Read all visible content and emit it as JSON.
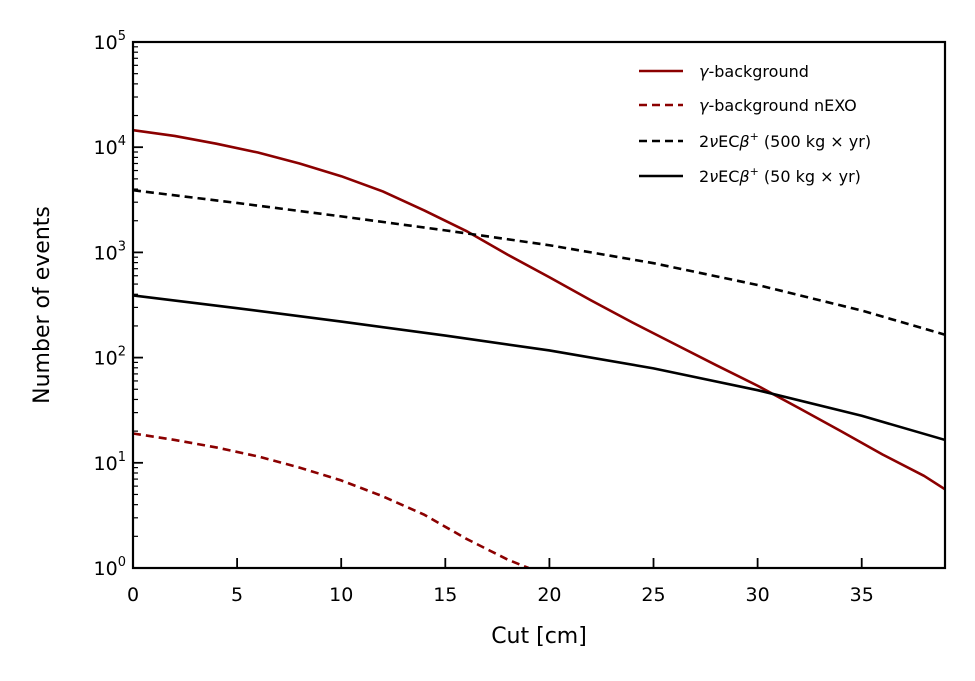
{
  "chart_data": {
    "type": "line",
    "title": "",
    "xlabel": "Cut [cm]",
    "ylabel": "Number of events",
    "xlim": [
      0,
      39
    ],
    "ylim": [
      1,
      100000
    ],
    "yscale": "log",
    "grid": false,
    "legend_position": "upper-right",
    "x_ticks": [
      0,
      5,
      10,
      15,
      20,
      25,
      30,
      35
    ],
    "y_ticks": [
      {
        "base": "10",
        "exp": "0",
        "value": 1
      },
      {
        "base": "10",
        "exp": "1",
        "value": 10
      },
      {
        "base": "10",
        "exp": "2",
        "value": 100
      },
      {
        "base": "10",
        "exp": "3",
        "value": 1000
      },
      {
        "base": "10",
        "exp": "4",
        "value": 10000
      },
      {
        "base": "10",
        "exp": "5",
        "value": 100000
      }
    ],
    "series": [
      {
        "name": "γ-background",
        "legend_parts": {
          "greek": "γ",
          "rest": "-background"
        },
        "color": "#8b0000",
        "dash": "solid",
        "x": [
          0,
          2,
          4,
          6,
          8,
          10,
          12,
          14,
          16,
          18,
          20,
          22,
          24,
          26,
          28,
          30,
          32,
          34,
          36,
          38,
          39
        ],
        "y": [
          14500,
          12800,
          10800,
          8900,
          7000,
          5300,
          3800,
          2500,
          1600,
          950,
          580,
          350,
          215,
          135,
          85,
          54,
          33,
          20,
          12,
          7.5,
          5.6
        ]
      },
      {
        "name": "γ-background nEXO",
        "legend_parts": {
          "greek": "γ",
          "rest": "-background nEXO"
        },
        "color": "#8b0000",
        "dash": "dashed",
        "x": [
          0,
          2,
          4,
          6,
          8,
          10,
          12,
          14,
          16,
          18,
          19
        ],
        "y": [
          19,
          16.5,
          14,
          11.5,
          9,
          6.8,
          4.8,
          3.2,
          1.9,
          1.2,
          1.0
        ]
      },
      {
        "name": "2νECβ⁺ (500 kg × yr)",
        "legend_parts": {
          "pre": "2",
          "nu": "ν",
          "mid": "EC",
          "beta": "β",
          "sup": "+",
          "rest": " (500 kg × yr)"
        },
        "color": "#000000",
        "dash": "dashed",
        "x": [
          0,
          5,
          10,
          15,
          20,
          25,
          30,
          35,
          39
        ],
        "y": [
          3900,
          2950,
          2200,
          1620,
          1170,
          790,
          490,
          280,
          165
        ]
      },
      {
        "name": "2νECβ⁺ (50 kg × yr)",
        "legend_parts": {
          "pre": "2",
          "nu": "ν",
          "mid": "EC",
          "beta": "β",
          "sup": "+",
          "rest": " (50 kg × yr)"
        },
        "color": "#000000",
        "dash": "solid",
        "x": [
          0,
          5,
          10,
          15,
          20,
          25,
          30,
          35,
          39
        ],
        "y": [
          390,
          295,
          220,
          162,
          117,
          79,
          49,
          28,
          16.5
        ]
      }
    ]
  }
}
